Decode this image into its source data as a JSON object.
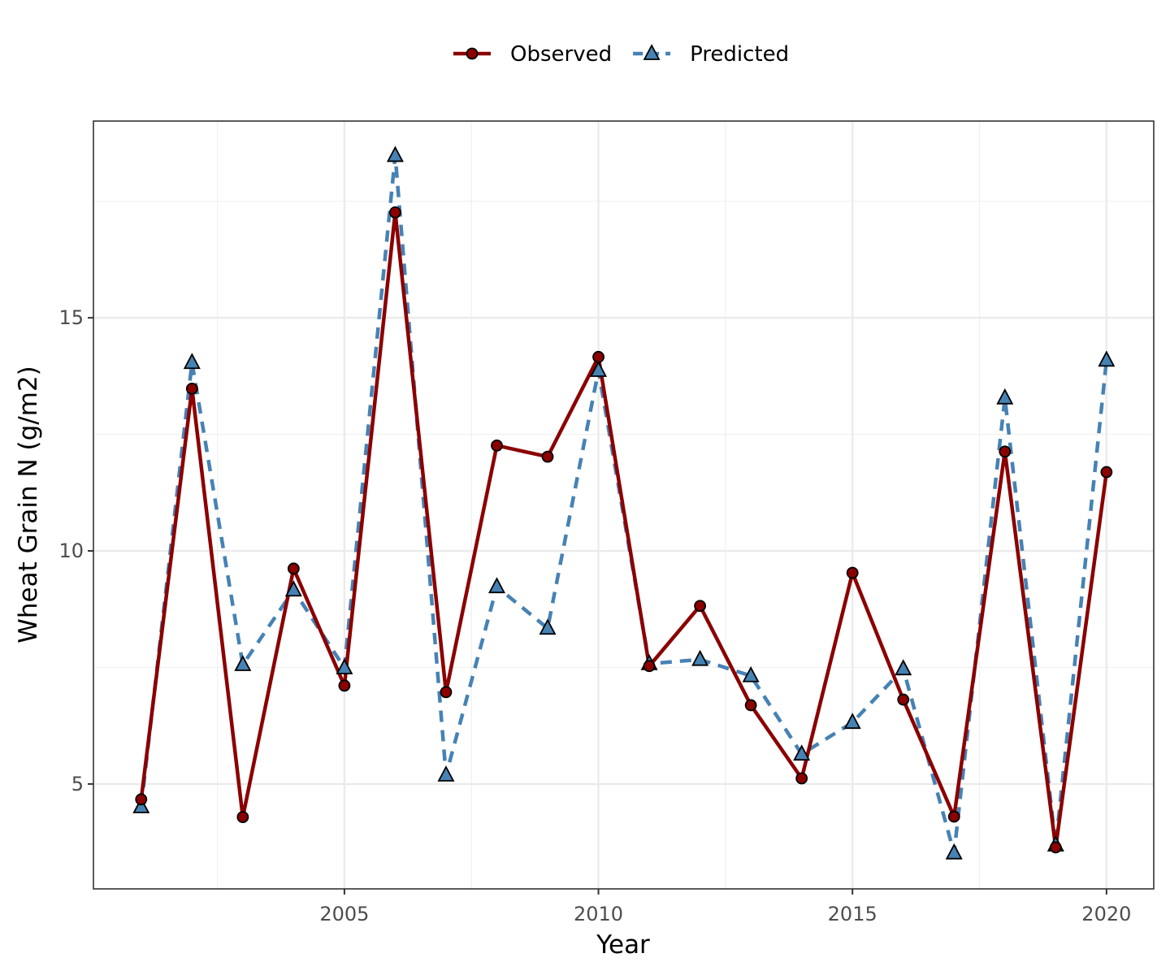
{
  "chart_data": {
    "type": "line",
    "x_label": "Year",
    "y_label": "Wheat Grain N (g/m2)",
    "x": [
      2001,
      2002,
      2003,
      2004,
      2005,
      2006,
      2007,
      2008,
      2009,
      2010,
      2011,
      2012,
      2013,
      2014,
      2015,
      2016,
      2017,
      2018,
      2019,
      2020
    ],
    "series": [
      {
        "name": "Observed",
        "color": "#8b0000",
        "marker": "circle",
        "linestyle": "solid",
        "values": [
          4.67,
          13.48,
          4.29,
          9.62,
          7.11,
          17.26,
          6.97,
          12.26,
          12.02,
          14.16,
          7.53,
          8.82,
          6.69,
          5.12,
          9.53,
          6.81,
          4.3,
          12.13,
          3.64,
          11.69
        ]
      },
      {
        "name": "Predicted",
        "color": "#4682b4",
        "marker": "triangle",
        "linestyle": "dashed",
        "values": [
          4.51,
          14.04,
          7.56,
          9.16,
          7.49,
          18.48,
          5.19,
          9.23,
          8.34,
          13.87,
          7.58,
          7.67,
          7.32,
          5.64,
          6.32,
          7.47,
          3.52,
          13.28,
          3.69,
          14.09
        ]
      }
    ],
    "xlim": [
      2000.06,
      2020.93
    ],
    "xticks": [
      2005,
      2010,
      2015,
      2020
    ],
    "ylim": [
      2.75,
      19.22
    ],
    "yticks": [
      5,
      10,
      15
    ],
    "grid": true,
    "legend_position": "top"
  }
}
